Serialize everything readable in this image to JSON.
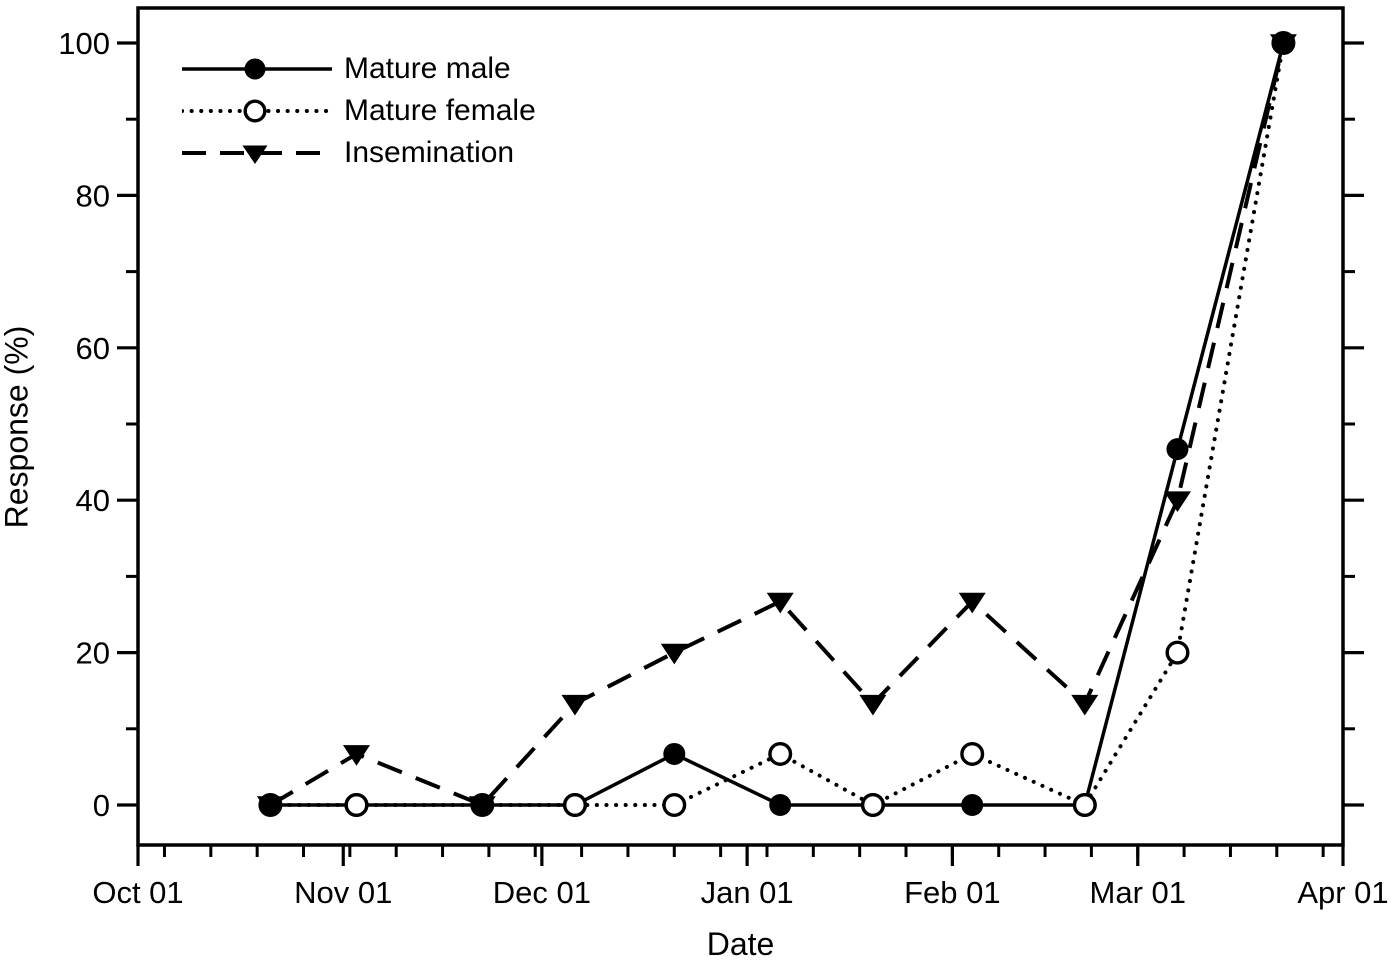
{
  "figure": {
    "background": "#ffffff",
    "foreground": "#000000"
  },
  "chart_data": {
    "type": "line",
    "title": "",
    "xlabel": "Date",
    "ylabel": "Response (%)",
    "x_axis": {
      "tick_labels": [
        "Oct 01",
        "Nov 01",
        "Dec 01",
        "Jan 01",
        "Feb 01",
        "Mar 01",
        "Apr 01"
      ],
      "tick_days": [
        0,
        31,
        61,
        92,
        123,
        151,
        182
      ],
      "range_days": [
        0,
        182
      ],
      "minor_tick_start_day": 4,
      "minor_tick_interval_days": 7
    },
    "y_axis": {
      "tick_labels": [
        "0",
        "20",
        "40",
        "60",
        "80",
        "100"
      ],
      "ticks": [
        0,
        20,
        40,
        60,
        80,
        100
      ],
      "minor_step": 10,
      "range": [
        0,
        100
      ]
    },
    "point_dates": [
      "Oct 21",
      "Nov 03",
      "Nov 22",
      "Dec 06",
      "Dec 21",
      "Jan 06",
      "Jan 20",
      "Feb 04",
      "Feb 21",
      "Mar 07",
      "Mar 23"
    ],
    "point_days": [
      20,
      33,
      52,
      66,
      81,
      97,
      111,
      126,
      143,
      157,
      173
    ],
    "series": [
      {
        "name": "Mature male",
        "marker": "filled-circle",
        "line_style": "solid",
        "values": [
          0,
          0,
          0,
          0,
          6.7,
          0,
          0,
          0,
          0,
          46.7,
          100
        ]
      },
      {
        "name": "Mature female",
        "marker": "open-circle",
        "line_style": "dotted",
        "values": [
          0,
          0,
          0,
          0,
          0,
          6.7,
          0,
          6.7,
          0,
          20,
          100
        ]
      },
      {
        "name": "Insemination",
        "marker": "filled-triangle-down",
        "line_style": "dashed",
        "values": [
          0,
          6.7,
          0,
          13.3,
          20,
          26.7,
          13.3,
          26.7,
          13.3,
          40,
          100
        ]
      }
    ],
    "legend": {
      "position": "upper-left"
    }
  }
}
